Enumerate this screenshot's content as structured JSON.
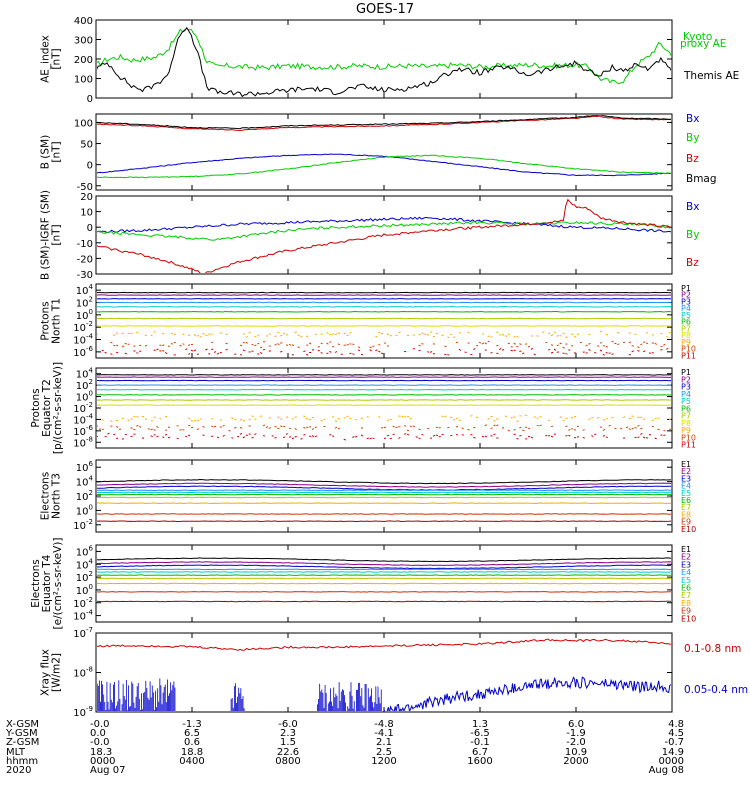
{
  "title": "GOES-17",
  "chart_data": [
    {
      "type": "line",
      "id": "ae",
      "ylabel": [
        "AE_index",
        "[nT]"
      ],
      "yticks": [
        "400",
        "300",
        "200",
        "100",
        "0"
      ],
      "ylim": [
        0,
        400
      ],
      "legend": [
        {
          "text": "Kyoto",
          "color": "#00cc00"
        },
        {
          "text": "proxy AE",
          "color": "#00cc00"
        },
        {
          "text": "Themis AE",
          "color": "#000000"
        }
      ],
      "series": [
        {
          "name": "Kyoto proxy AE",
          "color": "#00cc00",
          "x": [
            0,
            0.5,
            1,
            1.5,
            2,
            2.5,
            3,
            3.5,
            3.8,
            4.2,
            4.6,
            5,
            5.5,
            6,
            7,
            8,
            9,
            10,
            11,
            12,
            13,
            14,
            15,
            16,
            17,
            18,
            19,
            20,
            20.5,
            21,
            21.5,
            22,
            22.5,
            23,
            23.5,
            24
          ],
          "y": [
            170,
            200,
            210,
            195,
            200,
            210,
            250,
            340,
            360,
            320,
            190,
            160,
            165,
            160,
            155,
            165,
            160,
            160,
            165,
            160,
            165,
            160,
            170,
            160,
            165,
            170,
            165,
            170,
            160,
            100,
            80,
            90,
            170,
            210,
            280,
            220
          ]
        },
        {
          "name": "Themis AE",
          "color": "#000000",
          "x": [
            0,
            0.5,
            1,
            1.5,
            2,
            2.5,
            3,
            3.5,
            3.8,
            4.2,
            4.6,
            5,
            5.5,
            6,
            7,
            8,
            9,
            10,
            11,
            12,
            13,
            14,
            15,
            16,
            17,
            18,
            19,
            20,
            20.5,
            21,
            21.5,
            22,
            22.5,
            23,
            23.5,
            24
          ],
          "y": [
            150,
            180,
            110,
            60,
            40,
            70,
            120,
            330,
            370,
            250,
            60,
            30,
            25,
            20,
            25,
            40,
            50,
            30,
            60,
            40,
            50,
            80,
            150,
            130,
            160,
            120,
            150,
            180,
            140,
            110,
            160,
            140,
            170,
            150,
            200,
            130
          ]
        }
      ]
    },
    {
      "type": "line",
      "id": "bsm",
      "ylabel": [
        "B (SM)",
        "[nT]"
      ],
      "yticks": [
        "100",
        "50",
        "0",
        "-50"
      ],
      "ylim": [
        -60,
        120
      ],
      "legend": [
        {
          "text": "Bx",
          "color": "#0000cc"
        },
        {
          "text": "By",
          "color": "#00cc00"
        },
        {
          "text": "Bz",
          "color": "#cc0000"
        },
        {
          "text": "Bmag",
          "color": "#000000"
        }
      ],
      "series": [
        {
          "name": "Bx",
          "color": "#0000cc",
          "x": [
            0,
            2,
            4,
            6,
            8,
            10,
            12,
            14,
            16,
            18,
            20,
            22,
            24
          ],
          "y": [
            -20,
            -8,
            5,
            15,
            22,
            25,
            20,
            8,
            -5,
            -18,
            -25,
            -25,
            -20
          ]
        },
        {
          "name": "By",
          "color": "#00cc00",
          "x": [
            0,
            2,
            4,
            6,
            8,
            10,
            12,
            14,
            16,
            18,
            20,
            22,
            24
          ],
          "y": [
            -30,
            -30,
            -28,
            -22,
            -10,
            5,
            18,
            22,
            15,
            2,
            -10,
            -18,
            -20
          ]
        },
        {
          "name": "Bz",
          "color": "#cc0000",
          "x": [
            0,
            2,
            4,
            6,
            8,
            10,
            12,
            14,
            16,
            18,
            20,
            21,
            21.2,
            22,
            24
          ],
          "y": [
            96,
            92,
            85,
            82,
            88,
            90,
            92,
            95,
            100,
            105,
            110,
            115,
            112,
            108,
            106
          ]
        },
        {
          "name": "Bmag",
          "color": "#000000",
          "x": [
            0,
            2,
            4,
            6,
            8,
            10,
            12,
            14,
            16,
            18,
            20,
            21,
            21.2,
            22,
            24
          ],
          "y": [
            100,
            95,
            88,
            86,
            92,
            94,
            96,
            98,
            102,
            107,
            112,
            118,
            115,
            110,
            108
          ]
        }
      ]
    },
    {
      "type": "line",
      "id": "bdiff",
      "ylabel": [
        "B (SM)-IGRF (SM)",
        "[nT]"
      ],
      "yticks": [
        "20",
        "10",
        "0",
        "-10",
        "-20",
        "-30"
      ],
      "ylim": [
        -30,
        20
      ],
      "legend": [
        {
          "text": "Bx",
          "color": "#0000cc"
        },
        {
          "text": "By",
          "color": "#00cc00"
        },
        {
          "text": "Bz",
          "color": "#cc0000"
        }
      ],
      "series": [
        {
          "name": "Bx",
          "color": "#0000cc",
          "x": [
            0,
            2,
            4,
            6,
            8,
            10,
            12,
            14,
            16,
            18,
            20,
            22,
            24
          ],
          "y": [
            -3,
            -2,
            0,
            2,
            3,
            4,
            5,
            6,
            4,
            2,
            0,
            -1,
            -3
          ]
        },
        {
          "name": "By",
          "color": "#00cc00",
          "x": [
            0,
            2,
            4,
            5,
            6,
            8,
            10,
            12,
            14,
            16,
            18,
            20,
            22,
            24
          ],
          "y": [
            -3,
            -5,
            -7,
            -8,
            -6,
            -2,
            0,
            1,
            2,
            3,
            2,
            3,
            2,
            0
          ]
        },
        {
          "name": "Bz",
          "color": "#cc0000",
          "x": [
            0,
            1,
            2,
            3,
            4,
            4.5,
            5,
            6,
            8,
            10,
            12,
            14,
            16,
            18,
            19.5,
            19.6,
            20,
            20.5,
            21,
            22,
            24
          ],
          "y": [
            -12,
            -15,
            -18,
            -22,
            -27,
            -30,
            -27,
            -22,
            -15,
            -10,
            -5,
            -2,
            0,
            2,
            4,
            18,
            13,
            12,
            6,
            3,
            0
          ]
        }
      ]
    },
    {
      "type": "line",
      "id": "prot_t1",
      "ylabel": [
        "Protons",
        "North T1"
      ],
      "yticks": [
        "10^4",
        "10^2",
        "10^0",
        "10^-2",
        "10^-4",
        "10^-6"
      ],
      "yexp_log": [
        -7,
        5
      ],
      "legend": [
        {
          "text": "P1",
          "color": "#000000"
        },
        {
          "text": "P2",
          "color": "#8b008b"
        },
        {
          "text": "P3",
          "color": "#0000cc"
        },
        {
          "text": "P4",
          "color": "#1e90ff"
        },
        {
          "text": "P5",
          "color": "#00cccc"
        },
        {
          "text": "P6",
          "color": "#00bb00"
        },
        {
          "text": "P7",
          "color": "#aacc00"
        },
        {
          "text": "P8",
          "color": "#dddd00"
        },
        {
          "text": "P9",
          "color": "#ffaa00"
        },
        {
          "text": "P10",
          "color": "#cc4400"
        },
        {
          "text": "P11",
          "color": "#cc0000"
        }
      ],
      "levels_log10": [
        3.6,
        3.2,
        2.6,
        2.0,
        1.3,
        0.5,
        -0.6,
        -1.8,
        -3.2,
        -4.8,
        -6.0
      ]
    },
    {
      "type": "line",
      "id": "prot_t2",
      "ylabel": [
        "Protons",
        "Equator T2",
        "[p/(cm²-s-sr-keV)]"
      ],
      "yticks": [
        "10^4",
        "10^2",
        "10^0",
        "10^-2",
        "10^-4",
        "10^-6",
        "10^-8"
      ],
      "yexp_log": [
        -9,
        5
      ],
      "legend": [
        {
          "text": "P1",
          "color": "#000000"
        },
        {
          "text": "P2",
          "color": "#8b008b"
        },
        {
          "text": "P3",
          "color": "#0000cc"
        },
        {
          "text": "P4",
          "color": "#1e90ff"
        },
        {
          "text": "P5",
          "color": "#00cccc"
        },
        {
          "text": "P6",
          "color": "#00bb00"
        },
        {
          "text": "P7",
          "color": "#aacc00"
        },
        {
          "text": "P8",
          "color": "#dddd00"
        },
        {
          "text": "P9",
          "color": "#ffaa00"
        },
        {
          "text": "P10",
          "color": "#cc4400"
        },
        {
          "text": "P11",
          "color": "#cc0000"
        }
      ],
      "levels_log10": [
        3.8,
        3.4,
        2.8,
        2.0,
        1.2,
        0.3,
        -0.6,
        -1.5,
        -3.8,
        -5.5,
        -7.0
      ]
    },
    {
      "type": "line",
      "id": "elec_t3",
      "ylabel": [
        "Electrons",
        "North T3"
      ],
      "yticks": [
        "10^6",
        "10^4",
        "10^2",
        "10^0",
        "10^-2"
      ],
      "yexp_log": [
        -3,
        7
      ],
      "legend": [
        {
          "text": "E1",
          "color": "#000000"
        },
        {
          "text": "E2",
          "color": "#8b008b"
        },
        {
          "text": "E3",
          "color": "#0000cc"
        },
        {
          "text": "E4",
          "color": "#1e90ff"
        },
        {
          "text": "E5",
          "color": "#00cccc"
        },
        {
          "text": "E6",
          "color": "#00bb00"
        },
        {
          "text": "E7",
          "color": "#aacc00"
        },
        {
          "text": "E8",
          "color": "#ffaa00"
        },
        {
          "text": "E9",
          "color": "#cc3300"
        },
        {
          "text": "E10",
          "color": "#aa0000"
        }
      ],
      "levels_log10": [
        4.0,
        3.5,
        3.1,
        2.8,
        2.5,
        2.2,
        1.8,
        1.0,
        -0.5,
        -1.5
      ]
    },
    {
      "type": "line",
      "id": "elec_t4",
      "ylabel": [
        "Electrons",
        "Equator T4",
        "[e/(cm²-s-sr-keV)]"
      ],
      "yticks": [
        "10^6",
        "10^4",
        "10^2",
        "10^0",
        "10^-2",
        "10^-4"
      ],
      "yexp_log": [
        -5,
        7
      ],
      "legend": [
        {
          "text": "E1",
          "color": "#000000"
        },
        {
          "text": "E2",
          "color": "#8b008b"
        },
        {
          "text": "E3",
          "color": "#0000cc"
        },
        {
          "text": "E4",
          "color": "#1e90ff"
        },
        {
          "text": "E5",
          "color": "#00cccc"
        },
        {
          "text": "E6",
          "color": "#00bb00"
        },
        {
          "text": "E7",
          "color": "#aacc00"
        },
        {
          "text": "E8",
          "color": "#ffaa00"
        },
        {
          "text": "E9",
          "color": "#cc3300"
        },
        {
          "text": "E10",
          "color": "#aa0000"
        }
      ],
      "levels_log10": [
        4.7,
        4.1,
        3.6,
        3.2,
        2.8,
        2.3,
        1.8,
        1.0,
        -0.3,
        -1.8
      ]
    },
    {
      "type": "line",
      "id": "xray",
      "ylabel": [
        "Xray flux",
        "[W/m2]"
      ],
      "yticks": [
        "10^-7",
        "10^-8",
        "10^-9"
      ],
      "yexp_log": [
        -9,
        -7
      ],
      "legend": [
        {
          "text": "0.1-0.8 nm",
          "color": "#cc0000"
        },
        {
          "text": "0.05-0.4 nm",
          "color": "#0000cc"
        }
      ],
      "series": [
        {
          "name": "0.1-0.8 nm",
          "color": "#cc0000",
          "x": [
            0,
            2,
            4,
            6,
            8,
            10,
            12,
            14,
            16,
            18,
            19,
            20,
            21,
            22,
            23,
            24
          ],
          "y_log10": [
            -7.33,
            -7.32,
            -7.35,
            -7.42,
            -7.36,
            -7.36,
            -7.33,
            -7.3,
            -7.28,
            -7.2,
            -7.17,
            -7.2,
            -7.18,
            -7.2,
            -7.23,
            -7.28
          ]
        },
        {
          "name": "0.05-0.4 nm",
          "color": "#0000cc",
          "x": [
            12,
            13,
            14,
            15,
            16,
            17,
            18,
            19,
            20,
            21,
            22,
            23,
            23.5,
            24
          ],
          "y_log10": [
            -9.0,
            -8.9,
            -8.75,
            -8.62,
            -8.55,
            -8.45,
            -8.35,
            -8.25,
            -8.25,
            -8.28,
            -8.32,
            -8.38,
            -8.32,
            -8.4
          ]
        }
      ]
    }
  ],
  "xaxis": {
    "row_labels": [
      "X-GSM",
      "Y-GSM",
      "Z-GSM",
      "MLT",
      "hhmm",
      "2020"
    ],
    "columns": [
      {
        "t": 0,
        "vals": [
          "-0.0",
          "0.0",
          "-0.0",
          "18.3",
          "0000",
          "Aug 07"
        ]
      },
      {
        "t": 4,
        "vals": [
          "-1.3",
          "6.5",
          "0.6",
          "18.8",
          "0400",
          ""
        ]
      },
      {
        "t": 8,
        "vals": [
          "-6.0",
          "2.3",
          "1.5",
          "22.6",
          "0800",
          ""
        ]
      },
      {
        "t": 12,
        "vals": [
          "-4.8",
          "-4.1",
          "2.1",
          "2.5",
          "1200",
          ""
        ]
      },
      {
        "t": 16,
        "vals": [
          "1.3",
          "-6.5",
          "-0.1",
          "6.7",
          "1600",
          ""
        ]
      },
      {
        "t": 20,
        "vals": [
          "6.0",
          "-1.9",
          "-2.0",
          "10.9",
          "2000",
          ""
        ]
      },
      {
        "t": 24,
        "vals": [
          "4.8",
          "4.5",
          "-0.7",
          "14.9",
          "0000",
          "Aug 08"
        ]
      }
    ]
  }
}
